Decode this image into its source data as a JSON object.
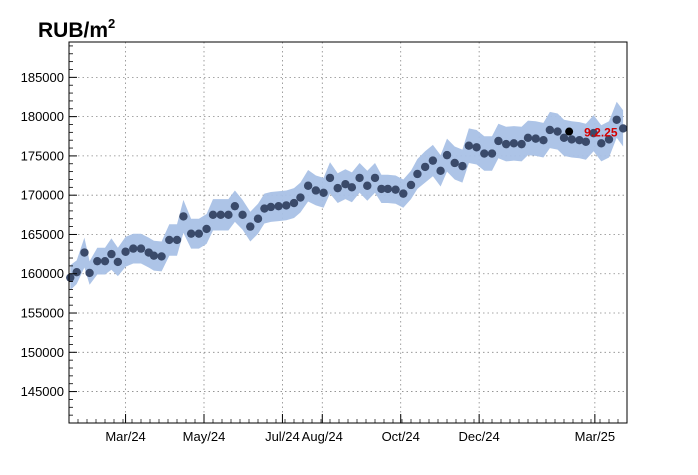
{
  "chart_data": {
    "type": "line",
    "title": "RUB/m",
    "title_superscript": "2",
    "xlabel": "",
    "ylabel": "",
    "x_ticks": [
      "Mar/24",
      "May/24",
      "Jul/24",
      "Aug/24",
      "Oct/24",
      "Dec/24",
      "Mar/25"
    ],
    "y_ticks": [
      145000,
      150000,
      155000,
      160000,
      165000,
      170000,
      175000,
      180000,
      185000
    ],
    "xlim": [
      "2024-01-17",
      "2025-03-26"
    ],
    "ylim": [
      141000,
      189500
    ],
    "grid": true,
    "colors": {
      "points": "#3a4a6a",
      "band": "#a9c1e6",
      "last_point": "#000000",
      "annotation": "#d40000"
    },
    "series": [
      {
        "x": [
          "2024-01-18",
          "2024-01-23",
          "2024-01-29",
          "2024-02-02",
          "2024-02-08",
          "2024-02-14",
          "2024-02-19",
          "2024-02-24",
          "2024-03-01",
          "2024-03-07",
          "2024-03-13",
          "2024-03-19",
          "2024-03-23",
          "2024-03-29",
          "2024-04-04",
          "2024-04-10",
          "2024-04-15",
          "2024-04-21",
          "2024-04-27",
          "2024-05-03",
          "2024-05-08",
          "2024-05-14",
          "2024-05-20",
          "2024-05-25",
          "2024-05-31",
          "2024-06-06",
          "2024-06-12",
          "2024-06-17",
          "2024-06-22",
          "2024-06-28",
          "2024-07-04",
          "2024-07-10",
          "2024-07-15",
          "2024-07-21",
          "2024-07-27",
          "2024-08-02",
          "2024-08-07",
          "2024-08-13",
          "2024-08-19",
          "2024-08-24",
          "2024-08-30",
          "2024-09-05",
          "2024-09-11",
          "2024-09-16",
          "2024-09-21",
          "2024-09-27",
          "2024-10-03",
          "2024-10-09",
          "2024-10-14",
          "2024-10-20",
          "2024-10-26",
          "2024-11-01",
          "2024-11-06",
          "2024-11-12",
          "2024-11-18",
          "2024-11-23",
          "2024-11-29",
          "2024-12-05",
          "2024-12-11",
          "2024-12-16",
          "2024-12-22",
          "2024-12-28",
          "2025-01-03",
          "2025-01-08",
          "2025-01-14",
          "2025-01-20",
          "2025-01-25",
          "2025-01-31"
        ],
        "y": [
          159500,
          160200,
          162700,
          160100,
          161600,
          161600,
          162500,
          161500,
          162800,
          163200,
          163200,
          162700,
          162300,
          162200,
          164300,
          164300,
          167300,
          165100,
          165100,
          165700,
          167500,
          167500,
          167500,
          168600,
          167500,
          166000,
          167000,
          168300,
          168500,
          168600,
          168700,
          169000,
          169700,
          171200,
          170600,
          170300,
          172200,
          170900,
          171400,
          171000,
          172200,
          171200,
          172200,
          170800,
          170800,
          170700,
          170200,
          171300,
          172700,
          173600,
          174400,
          173100,
          175100,
          174100,
          173700,
          176300,
          176100,
          175300,
          175300,
          176900,
          176500,
          176600,
          176500,
          177300,
          177200,
          177000,
          178300,
          178100
        ],
        "band_low": [
          157900,
          158700,
          160800,
          158600,
          159900,
          159900,
          160500,
          159700,
          160900,
          161300,
          161300,
          160800,
          160400,
          160300,
          162300,
          162300,
          165200,
          163200,
          163200,
          163800,
          165500,
          165500,
          165500,
          166600,
          165600,
          164100,
          165100,
          166400,
          166600,
          166700,
          166800,
          167100,
          167800,
          169200,
          168700,
          168400,
          170200,
          169000,
          169500,
          169100,
          170300,
          169300,
          170300,
          169000,
          169000,
          168900,
          168400,
          169500,
          170800,
          171600,
          172400,
          171100,
          173000,
          172000,
          171600,
          174100,
          173900,
          173100,
          173100,
          174700,
          174300,
          174400,
          174300,
          175100,
          175000,
          174800,
          176000,
          175800
        ],
        "band_high": [
          161100,
          161700,
          164600,
          161600,
          163300,
          163300,
          164500,
          163300,
          164700,
          165100,
          165100,
          164600,
          164200,
          164100,
          166300,
          166300,
          169400,
          167000,
          167000,
          167600,
          169500,
          169500,
          169500,
          170600,
          169400,
          167900,
          168900,
          170200,
          170400,
          170500,
          170600,
          170900,
          171600,
          173200,
          172500,
          172200,
          174200,
          172800,
          173300,
          172900,
          174100,
          173100,
          174100,
          172600,
          172600,
          172500,
          172000,
          173100,
          174600,
          175600,
          176400,
          175100,
          177200,
          176200,
          175800,
          178500,
          178300,
          177500,
          177500,
          179100,
          178700,
          178800,
          178700,
          179500,
          179400,
          179200,
          180600,
          180400
        ]
      }
    ],
    "continued_series": {
      "x": [
        "2025-02-05",
        "2025-02-11",
        "2025-02-17",
        "2025-02-22",
        "2025-02-28",
        "2025-03-06",
        "2025-03-12",
        "2025-03-18",
        "2025-03-23"
      ],
      "y": [
        177300,
        177100,
        177000,
        176800,
        177900,
        176600,
        177100,
        179600,
        178500
      ]
    },
    "last_point": {
      "x": "2025-02-09",
      "y": 178100,
      "label": "9.2.25"
    }
  }
}
